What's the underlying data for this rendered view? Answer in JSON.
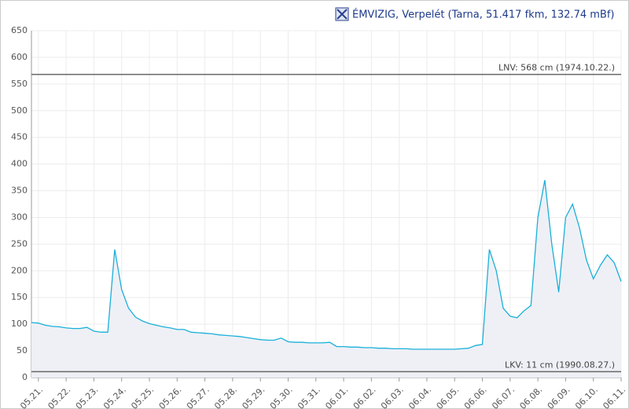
{
  "chart_data": {
    "type": "line",
    "title": "ÉMVIZIG, Verpelét (Tarna, 51.417 fkm, 132.74 mBf)",
    "categories": [
      null,
      "05.21.",
      null,
      null,
      null,
      "05.22.",
      null,
      null,
      null,
      "05.23.",
      null,
      null,
      null,
      "05.24.",
      null,
      null,
      null,
      "05.25.",
      null,
      null,
      null,
      "05.26.",
      null,
      null,
      null,
      "05.27.",
      null,
      null,
      null,
      "05.28.",
      null,
      null,
      null,
      "05.29.",
      null,
      null,
      null,
      "05.30.",
      null,
      null,
      null,
      "05.31.",
      null,
      null,
      null,
      "06.01.",
      null,
      null,
      null,
      "06.02.",
      null,
      null,
      null,
      "06.03.",
      null,
      null,
      null,
      "06.04.",
      null,
      null,
      null,
      "06.05.",
      null,
      null,
      null,
      "06.06.",
      null,
      null,
      null,
      "06.07.",
      null,
      null,
      null,
      "06.08.",
      null,
      null,
      null,
      "06.09.",
      null,
      null,
      null,
      "06.10.",
      null,
      null,
      null,
      "06.11."
    ],
    "series": [
      {
        "color": "#1ab0d8",
        "values": [
          103,
          102,
          98,
          96,
          95,
          93,
          92,
          92,
          94,
          87,
          85,
          85,
          240,
          165,
          130,
          113,
          106,
          101,
          98,
          95,
          93,
          90,
          90,
          85,
          84,
          83,
          82,
          80,
          79,
          78,
          77,
          75,
          73,
          71,
          70,
          70,
          74,
          67,
          66,
          66,
          65,
          65,
          65,
          66,
          58,
          58,
          57,
          57,
          56,
          56,
          55,
          55,
          54,
          54,
          54,
          53,
          53,
          53,
          53,
          53,
          53,
          53,
          54,
          55,
          60,
          62,
          240,
          200,
          130,
          115,
          112,
          125,
          135,
          300,
          370,
          250,
          160,
          300,
          325,
          280,
          220,
          185,
          210,
          230,
          215,
          180
        ]
      }
    ],
    "ylim": [
      0,
      650
    ],
    "yticks": [
      0,
      50,
      100,
      150,
      200,
      250,
      300,
      350,
      400,
      450,
      500,
      550,
      600,
      650
    ],
    "grid": true,
    "ref_lines": [
      {
        "value": 568,
        "label": "LNV: 568 cm (1974.10.22.)"
      },
      {
        "value": 11,
        "label": "LKV: 11 cm (1990.08.27.)"
      }
    ]
  }
}
